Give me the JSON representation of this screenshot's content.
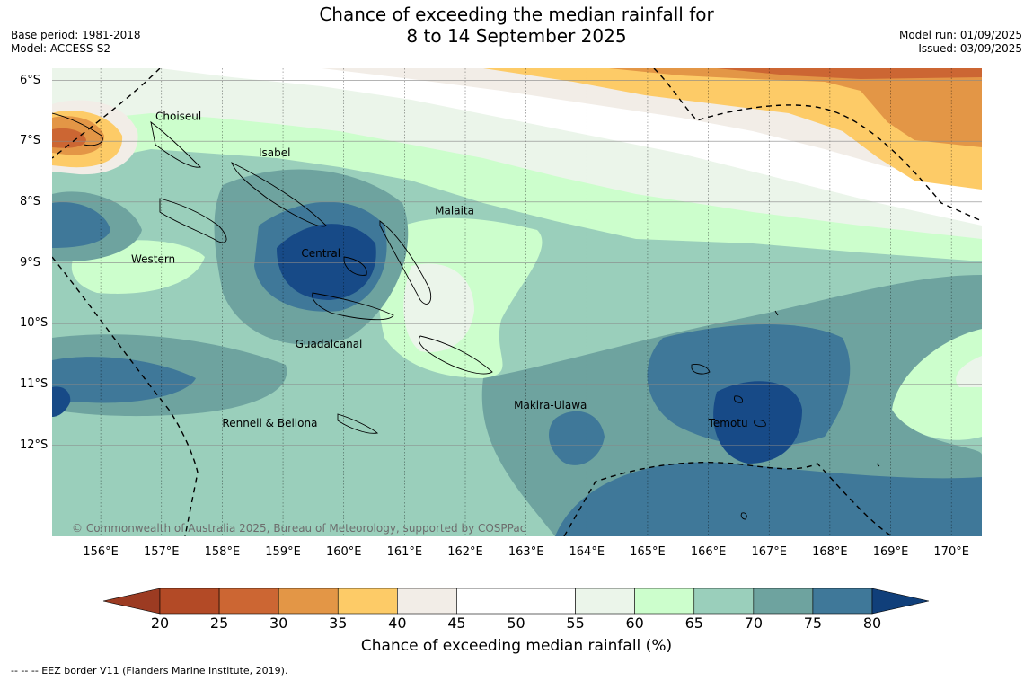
{
  "title": {
    "line1": "Chance of exceeding the median rainfall for",
    "line2": "8 to 14 September 2025"
  },
  "meta_left": {
    "base_period": "Base period: 1981-2018",
    "model": "Model: ACCESS-S2"
  },
  "meta_right": {
    "model_run": "Model run: 01/09/2025",
    "issued": "Issued: 03/09/2025"
  },
  "axes": {
    "lat_labels": [
      "6°S",
      "7°S",
      "8°S",
      "9°S",
      "10°S",
      "11°S",
      "12°S"
    ],
    "lat_values": [
      -6,
      -7,
      -8,
      -9,
      -10,
      -11,
      -12
    ],
    "lon_labels": [
      "156°E",
      "157°E",
      "158°E",
      "159°E",
      "160°E",
      "161°E",
      "162°E",
      "163°E",
      "164°E",
      "165°E",
      "166°E",
      "167°E",
      "168°E",
      "169°E",
      "170°E"
    ],
    "lon_values": [
      156,
      157,
      158,
      159,
      160,
      161,
      162,
      163,
      164,
      165,
      166,
      167,
      168,
      169,
      170
    ],
    "lon_range": [
      155.2,
      170.5
    ],
    "lat_range": [
      -13.5,
      -5.8
    ],
    "grid": true
  },
  "places": [
    {
      "name": "Choiseul",
      "lon": 156.9,
      "lat": -6.65
    },
    {
      "name": "Isabel",
      "lon": 158.6,
      "lat": -7.25
    },
    {
      "name": "Malaita",
      "lon": 161.5,
      "lat": -8.2
    },
    {
      "name": "Western",
      "lon": 156.5,
      "lat": -9.0
    },
    {
      "name": "Central",
      "lon": 159.3,
      "lat": -8.9
    },
    {
      "name": "Guadalcanal",
      "lon": 159.2,
      "lat": -10.4
    },
    {
      "name": "Makira-Ulawa",
      "lon": 162.8,
      "lat": -11.4
    },
    {
      "name": "Rennell & Bellona",
      "lon": 158.0,
      "lat": -11.7
    },
    {
      "name": "Temotu",
      "lon": 166.0,
      "lat": -11.7
    }
  ],
  "copyright": "© Commonwealth of Australia 2025, Bureau of Meteorology, supported by COSPPac",
  "colorbar": {
    "ticks": [
      "20",
      "25",
      "30",
      "35",
      "40",
      "45",
      "50",
      "55",
      "60",
      "65",
      "70",
      "75",
      "80"
    ],
    "colors": [
      "#b34a26",
      "#cc6633",
      "#e39646",
      "#fdcb67",
      "#f2ede7",
      "#ffffff",
      "#ffffff",
      "#ebf5ea",
      "#ccfecc",
      "#9acfbb",
      "#6ea39f",
      "#3f7899",
      "#174a87"
    ],
    "under_color": "#9c3b22",
    "over_color": "#103f7a",
    "label": "Chance of exceeding median rainfall (%)"
  },
  "eez_note": "--  --  -- EEZ border V11 (Flanders Marine Institute, 2019)."
}
